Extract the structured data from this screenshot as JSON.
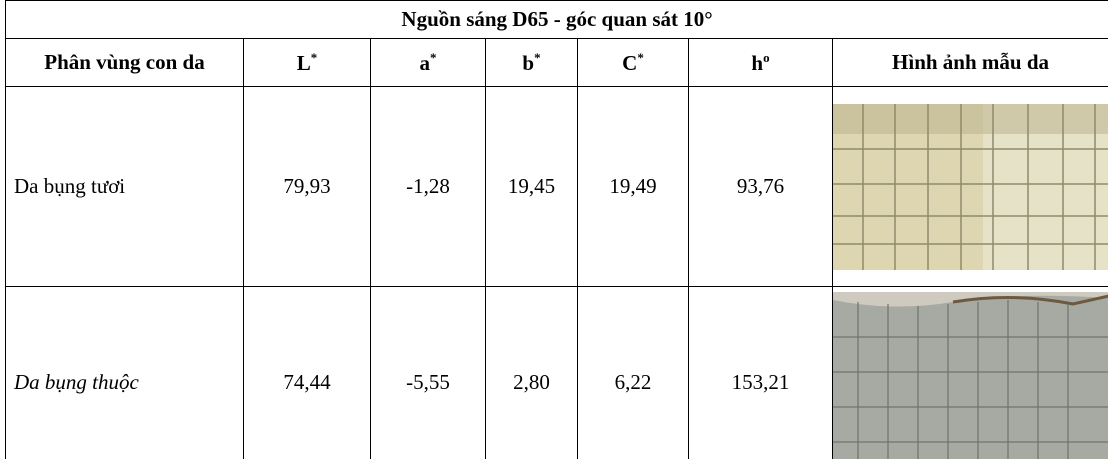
{
  "title": "Nguồn sáng D65 - góc quan sát 10°",
  "header": [
    {
      "text": "Phân vùng con da"
    },
    {
      "text": "L",
      "sup": "*"
    },
    {
      "text": "a",
      "sup": "*"
    },
    {
      "text": "b",
      "sup": "*"
    },
    {
      "text": "C",
      "sup": "*"
    },
    {
      "text": "h",
      "sup": "o"
    },
    {
      "text": "Hình ảnh mẫu da"
    }
  ],
  "rows": [
    [
      "Da bụng tươi",
      "79,93",
      "-1,28",
      "19,45",
      "19,49",
      "93,76"
    ],
    [
      "Da bụng thuộc",
      "74,44",
      "-5,55",
      "2,80",
      "6,22",
      "153,21"
    ]
  ]
}
